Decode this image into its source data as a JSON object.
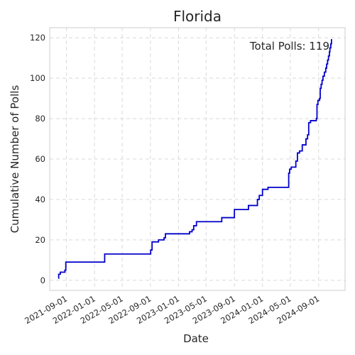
{
  "chart_data": {
    "type": "line",
    "step": true,
    "title": "Florida",
    "xlabel": "Date",
    "ylabel": "Cumulative Number of Polls",
    "annotation": "Total Polls: 119",
    "grid": true,
    "xlim": [
      "2021-06-20",
      "2024-12-25"
    ],
    "ylim": [
      -5,
      125
    ],
    "yticks": [
      0,
      20,
      40,
      60,
      80,
      100,
      120
    ],
    "xticks": [
      "2021-09-01",
      "2022-01-01",
      "2022-05-01",
      "2022-09-01",
      "2023-01-01",
      "2023-05-01",
      "2023-09-01",
      "2024-01-01",
      "2024-05-01",
      "2024-09-01"
    ],
    "series": [
      {
        "color": "#0000cc",
        "points": [
          [
            "2021-07-28",
            1
          ],
          [
            "2021-07-29",
            3
          ],
          [
            "2021-08-05",
            4
          ],
          [
            "2021-08-25",
            5
          ],
          [
            "2021-08-29",
            9
          ],
          [
            "2022-02-14",
            13
          ],
          [
            "2022-09-02",
            15
          ],
          [
            "2022-09-08",
            19
          ],
          [
            "2022-10-06",
            20
          ],
          [
            "2022-10-30",
            21
          ],
          [
            "2022-11-05",
            23
          ],
          [
            "2023-02-18",
            24
          ],
          [
            "2023-03-01",
            25
          ],
          [
            "2023-03-08",
            27
          ],
          [
            "2023-03-20",
            29
          ],
          [
            "2023-07-08",
            31
          ],
          [
            "2023-09-01",
            35
          ],
          [
            "2023-11-01",
            37
          ],
          [
            "2023-12-10",
            40
          ],
          [
            "2023-12-18",
            42
          ],
          [
            "2024-01-01",
            45
          ],
          [
            "2024-01-25",
            46
          ],
          [
            "2024-04-24",
            53
          ],
          [
            "2024-04-28",
            55
          ],
          [
            "2024-05-05",
            56
          ],
          [
            "2024-05-25",
            59
          ],
          [
            "2024-06-01",
            63
          ],
          [
            "2024-06-10",
            64
          ],
          [
            "2024-06-22",
            67
          ],
          [
            "2024-07-08",
            70
          ],
          [
            "2024-07-15",
            72
          ],
          [
            "2024-07-20",
            78
          ],
          [
            "2024-07-28",
            79
          ],
          [
            "2024-08-22",
            80
          ],
          [
            "2024-08-25",
            87
          ],
          [
            "2024-08-29",
            89
          ],
          [
            "2024-09-05",
            90
          ],
          [
            "2024-09-08",
            95
          ],
          [
            "2024-09-12",
            97
          ],
          [
            "2024-09-16",
            99
          ],
          [
            "2024-09-20",
            101
          ],
          [
            "2024-09-26",
            103
          ],
          [
            "2024-10-02",
            105
          ],
          [
            "2024-10-06",
            107
          ],
          [
            "2024-10-10",
            109
          ],
          [
            "2024-10-14",
            111
          ],
          [
            "2024-10-18",
            113
          ],
          [
            "2024-10-20",
            115
          ],
          [
            "2024-10-24",
            117
          ],
          [
            "2024-10-27",
            119
          ],
          [
            "2024-10-30",
            119
          ]
        ]
      }
    ]
  }
}
